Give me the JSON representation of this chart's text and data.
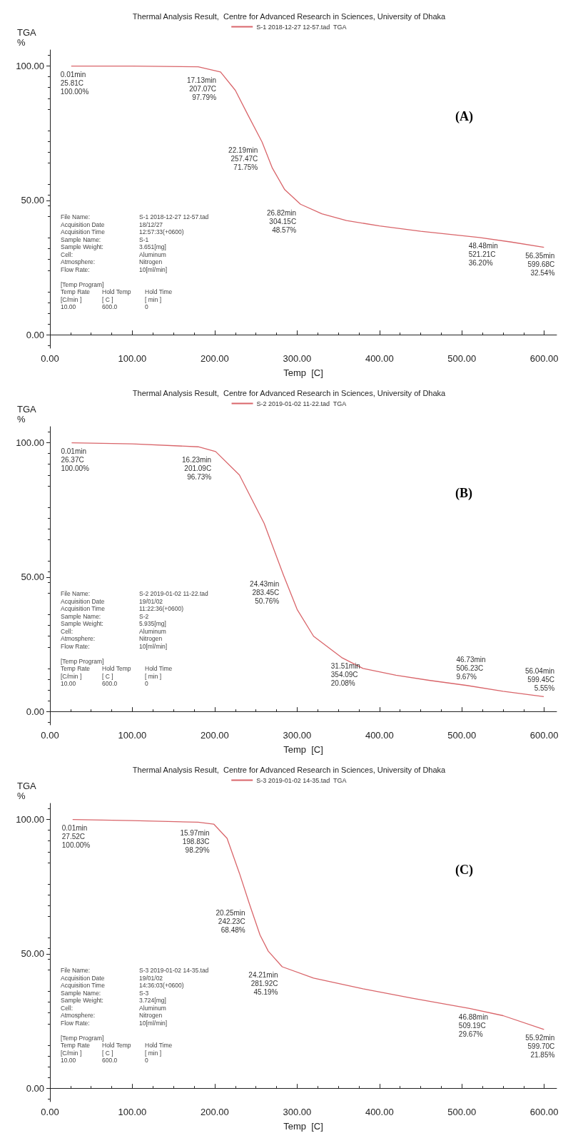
{
  "chart_data": [
    {
      "type": "line",
      "title": "Thermal Analysis Result,  Centre for Advanced Research in Sciences, University of Dhaka",
      "xlabel": "Temp  [C]",
      "ylabel": "TGA\n%",
      "legend": "top",
      "grid": false,
      "marker": "none",
      "line_style": "solid",
      "xlim": [
        0,
        615
      ],
      "ylim": [
        -5,
        106
      ],
      "xticks": [
        {
          "value": 0,
          "label": "0.00"
        },
        {
          "value": 100,
          "label": "100.00"
        },
        {
          "value": 200,
          "label": "200.00"
        },
        {
          "value": 300,
          "label": "300.00"
        },
        {
          "value": 400,
          "label": "400.00"
        },
        {
          "value": 500,
          "label": "500.00"
        },
        {
          "value": 600,
          "label": "600.00"
        }
      ],
      "yticks": [
        {
          "value": 0,
          "label": "0.00"
        },
        {
          "value": 50,
          "label": "50.00"
        },
        {
          "value": 100,
          "label": "100.00"
        }
      ],
      "series": [
        {
          "name": "S-1 2018-12-27 12-57.tad  TGA",
          "color": "#d9656a",
          "x": [
            25.81,
            100,
            180,
            207.07,
            225,
            240,
            257.47,
            270,
            285,
            304.15,
            330,
            360,
            400,
            450,
            521.21,
            560,
            599.68
          ],
          "values": [
            100,
            100,
            99.7,
            97.79,
            91,
            82,
            71.75,
            62,
            54,
            48.57,
            45,
            42.5,
            40.5,
            38.5,
            36.2,
            34.5,
            32.54
          ]
        }
      ],
      "annotations": [
        {
          "text": "0.01min\n25.81C\n100.00%",
          "x": 25.81,
          "y": 100
        },
        {
          "text": "17.13min\n207.07C\n97.79%",
          "x": 207.07,
          "y": 97.79
        },
        {
          "text": "22.19min\n257.47C\n71.75%",
          "x": 257.47,
          "y": 71.75
        },
        {
          "text": "26.82min\n304.15C\n48.57%",
          "x": 304.15,
          "y": 48.57
        },
        {
          "text": "48.48min\n521.21C\n36.20%",
          "x": 521.21,
          "y": 36.2
        },
        {
          "text": "56.35min\n599.68C\n32.54%",
          "x": 599.68,
          "y": 32.54
        },
        "File Name:\tS-1 2018-12-27 12-57.tad\nAcquisition Date\t18/12/27\nAcquisition Time\t12:57:33(+0600)\nSample Name:\tS-1\nSample Weight:\t3.651[mg]\nCell:\tAluminum\nAtmosphere:\tNitrogen\nFlow Rate:\t10[ml/min]\n\n[Temp Program]\nTemp Rate\tHold Temp\tHold Time\n[C/min ]\t[ C ]\t[ min ]\n10.00\t600.0\t0",
        "(A)"
      ]
    },
    {
      "type": "line",
      "title": "Thermal Analysis Result,  Centre for Advanced Research in Sciences, University of Dhaka",
      "xlabel": "Temp  [C]",
      "ylabel": "TGA\n%",
      "legend": "top",
      "grid": false,
      "marker": "none",
      "line_style": "solid",
      "xlim": [
        0,
        615
      ],
      "ylim": [
        -5,
        106
      ],
      "xticks": [
        {
          "value": 0,
          "label": "0.00"
        },
        {
          "value": 100,
          "label": "100.00"
        },
        {
          "value": 200,
          "label": "200.00"
        },
        {
          "value": 300,
          "label": "300.00"
        },
        {
          "value": 400,
          "label": "400.00"
        },
        {
          "value": 500,
          "label": "500.00"
        },
        {
          "value": 600,
          "label": "600.00"
        }
      ],
      "yticks": [
        {
          "value": 0,
          "label": "0.00"
        },
        {
          "value": 50,
          "label": "50.00"
        },
        {
          "value": 100,
          "label": "100.00"
        }
      ],
      "series": [
        {
          "name": "S-2 2019-01-02 11-22.tad  TGA",
          "color": "#d9656a",
          "x": [
            26.37,
            100,
            180,
            201.09,
            230,
            260,
            283.45,
            300,
            320,
            354.09,
            380,
            420,
            460,
            506.23,
            550,
            599.45
          ],
          "values": [
            100,
            99.6,
            98.5,
            96.73,
            88,
            70,
            50.76,
            38,
            28,
            20.08,
            16,
            13.5,
            11.6,
            9.67,
            7.5,
            5.55
          ]
        }
      ],
      "annotations": [
        {
          "text": "0.01min\n26.37C\n100.00%",
          "x": 26.37,
          "y": 100
        },
        {
          "text": "16.23min\n201.09C\n96.73%",
          "x": 201.09,
          "y": 96.73
        },
        {
          "text": "24.43min\n283.45C\n50.76%",
          "x": 283.45,
          "y": 50.76
        },
        {
          "text": "31.51min\n354.09C\n20.08%",
          "x": 354.09,
          "y": 20.08
        },
        {
          "text": "46.73min\n506.23C\n9.67%",
          "x": 506.23,
          "y": 9.67
        },
        {
          "text": "56.04min\n599.45C\n5.55%",
          "x": 599.45,
          "y": 5.55
        },
        "File Name:\tS-2 2019-01-02 11-22.tad\nAcquisition Date\t19/01/02\nAcquisition Time\t11:22:36(+0600)\nSample Name:\tS-2\nSample Weight:\t5.935[mg]\nCell:\tAluminum\nAtmosphere:\tNitrogen\nFlow Rate:\t10[ml/min]\n\n[Temp Program]\nTemp Rate\tHold Temp\tHold Time\n[C/min ]\t[ C ]\t[ min ]\n10.00\t600.0\t0",
        "(B)"
      ]
    },
    {
      "type": "line",
      "title": "Thermal Analysis Result,  Centre for Advanced Research in Sciences, University of Dhaka",
      "xlabel": "Temp  [C]",
      "ylabel": "TGA\n%",
      "legend": "top",
      "grid": false,
      "marker": "none",
      "line_style": "solid",
      "xlim": [
        0,
        615
      ],
      "ylim": [
        -5,
        106
      ],
      "xticks": [
        {
          "value": 0,
          "label": "0.00"
        },
        {
          "value": 100,
          "label": "100.00"
        },
        {
          "value": 200,
          "label": "200.00"
        },
        {
          "value": 300,
          "label": "300.00"
        },
        {
          "value": 400,
          "label": "400.00"
        },
        {
          "value": 500,
          "label": "500.00"
        },
        {
          "value": 600,
          "label": "600.00"
        }
      ],
      "yticks": [
        {
          "value": 0,
          "label": "0.00"
        },
        {
          "value": 50,
          "label": "50.00"
        },
        {
          "value": 100,
          "label": "100.00"
        }
      ],
      "series": [
        {
          "name": "S-3 2019-01-02 14-35.tad  TGA",
          "color": "#d9656a",
          "x": [
            27.52,
            100,
            180,
            198.83,
            215,
            230,
            242.23,
            255,
            265,
            281.92,
            320,
            380,
            440,
            509.19,
            550,
            599.7
          ],
          "values": [
            100,
            99.6,
            99,
            98.29,
            93,
            80,
            68.48,
            57,
            51,
            45.19,
            41,
            37,
            33.5,
            29.67,
            27,
            21.85
          ]
        }
      ],
      "annotations": [
        {
          "text": "0.01min\n27.52C\n100.00%",
          "x": 27.52,
          "y": 100
        },
        {
          "text": "15.97min\n198.83C\n98.29%",
          "x": 198.83,
          "y": 98.29
        },
        {
          "text": "20.25min\n242.23C\n68.48%",
          "x": 242.23,
          "y": 68.48
        },
        {
          "text": "24.21min\n281.92C\n45.19%",
          "x": 281.92,
          "y": 45.19
        },
        {
          "text": "46.88min\n509.19C\n29.67%",
          "x": 509.19,
          "y": 29.67
        },
        {
          "text": "55.92min\n599.70C\n21.85%",
          "x": 599.7,
          "y": 21.85
        },
        "File Name:\tS-3 2019-01-02 14-35.tad\nAcquisition Date\t19/01/02\nAcquisition Time\t14:36:03(+0600)\nSample Name:\tS-3\nSample Weight:\t3.724[mg]\nCell:\tAluminum\nAtmosphere:\tNitrogen\nFlow Rate:\t10[ml/min]\n\n[Temp Program]\nTemp Rate\tHold Temp\tHold Time\n[C/min ]\t[ C ]\t[ min ]\n10.00\t600.0\t0",
        "(C)"
      ]
    }
  ]
}
